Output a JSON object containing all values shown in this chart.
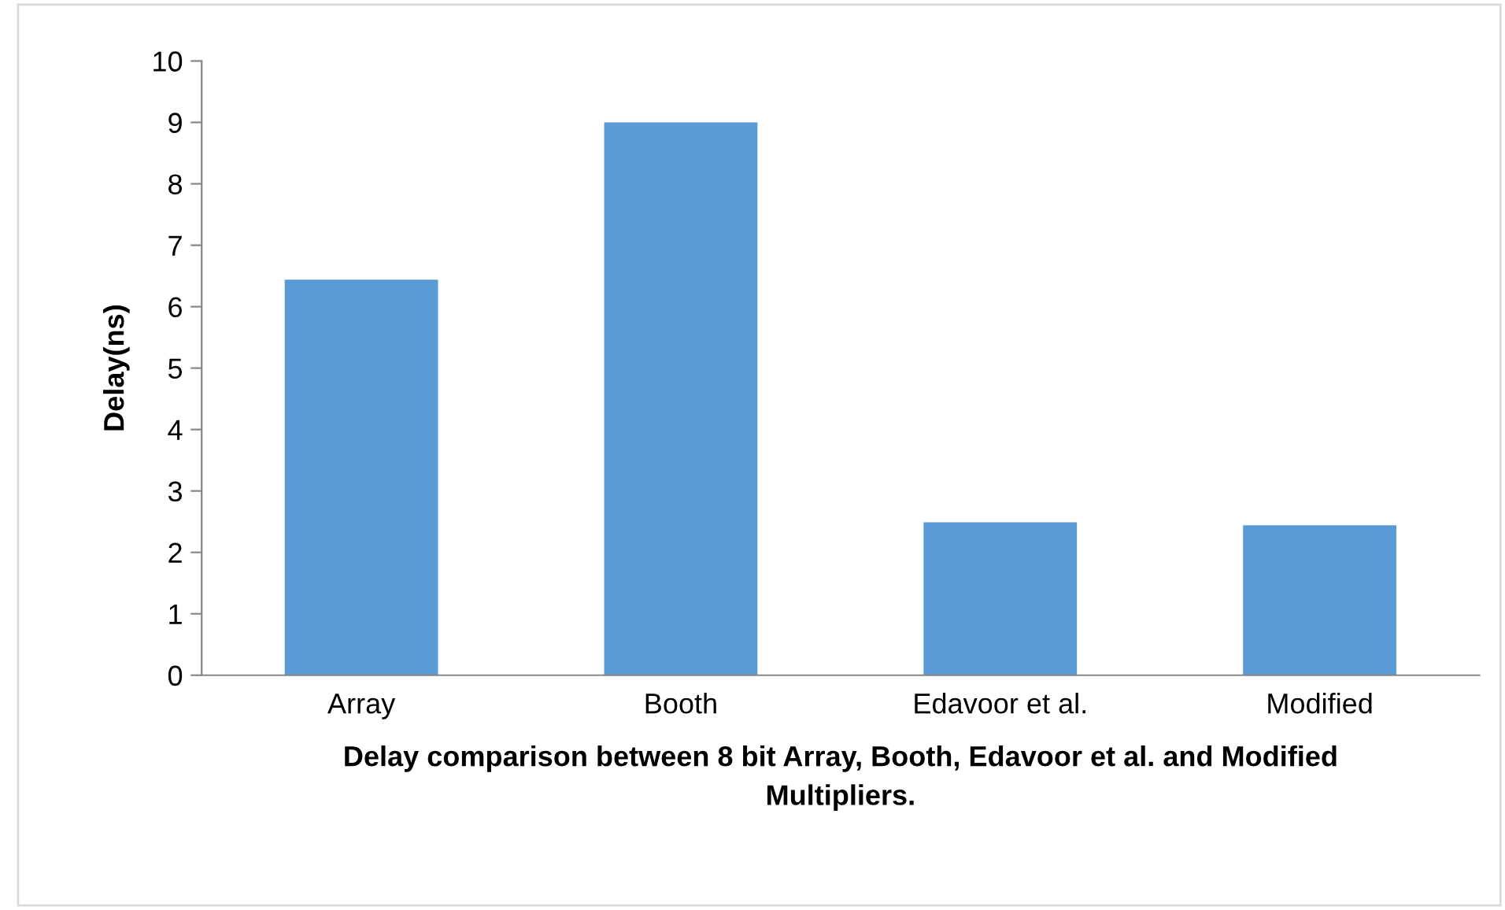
{
  "chart_data": {
    "type": "bar",
    "xlabel": "Delay comparison between 8 bit Array, Booth, Edavoor et al. and Modified Multipliers.",
    "ylabel": "Delay(ns)",
    "categories": [
      "Array",
      "Booth",
      "Edavoor et al.",
      "Modified"
    ],
    "values": [
      6.44,
      9.0,
      2.49,
      2.44
    ],
    "color": "#5b9bd5",
    "ylim": [
      0,
      10
    ],
    "yticks": [
      0,
      1,
      2,
      3,
      4,
      5,
      6,
      7,
      8,
      9,
      10
    ],
    "grid": false,
    "legend": false
  }
}
